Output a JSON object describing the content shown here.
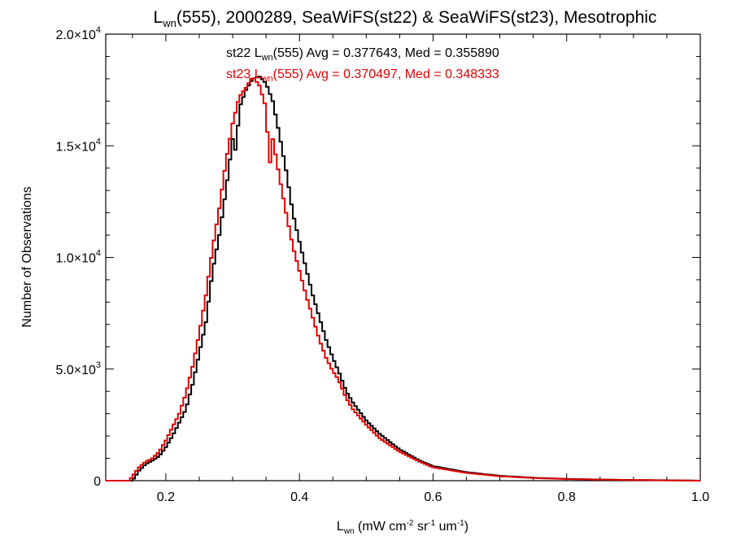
{
  "chart_data": {
    "type": "line",
    "title": {
      "L": "L",
      "sub": "wn",
      "rest": "(555), 2000289, SeaWiFS(st22) & SeaWiFS(st23), Mesotrophic"
    },
    "xlabel": {
      "L": "L",
      "sub": "wn",
      "units_a": " (mW cm",
      "exp1": "-2",
      "units_b": " sr",
      "exp2": "-1",
      "units_c": " um",
      "exp3": "-1",
      "units_d": ")"
    },
    "ylabel": "Number of Observations",
    "xlim": [
      0.11,
      1.0
    ],
    "ylim": [
      0,
      20000
    ],
    "xticks": [
      {
        "value": 0.2,
        "label": "0.2"
      },
      {
        "value": 0.4,
        "label": "0.4"
      },
      {
        "value": 0.6,
        "label": "0.6"
      },
      {
        "value": 0.8,
        "label": "0.8"
      },
      {
        "value": 1.0,
        "label": "1.0"
      }
    ],
    "yticks": [
      {
        "value": 0,
        "mant": "0",
        "exp": ""
      },
      {
        "value": 5000,
        "mant": "5.0×10",
        "exp": "3"
      },
      {
        "value": 10000,
        "mant": "1.0×10",
        "exp": "4"
      },
      {
        "value": 15000,
        "mant": "1.5×10",
        "exp": "4"
      },
      {
        "value": 20000,
        "mant": "2.0×10",
        "exp": "4"
      }
    ],
    "grid": false,
    "annotations": [
      {
        "prefix": "st22 L",
        "sub": "wn",
        "rest": "(555) Avg = 0.377643, Med = 0.355890",
        "color": "#000000"
      },
      {
        "prefix": "st23 L",
        "sub": "wn",
        "rest": "(555) Avg = 0.370497, Med = 0.348333",
        "color": "#e00000"
      }
    ],
    "series": [
      {
        "color": "#000000",
        "x": [
          0.11,
          0.15,
          0.16,
          0.17,
          0.18,
          0.19,
          0.2,
          0.21,
          0.22,
          0.23,
          0.24,
          0.25,
          0.26,
          0.27,
          0.28,
          0.29,
          0.3,
          0.305,
          0.31,
          0.32,
          0.33,
          0.34,
          0.35,
          0.36,
          0.37,
          0.38,
          0.39,
          0.4,
          0.41,
          0.42,
          0.43,
          0.44,
          0.45,
          0.46,
          0.47,
          0.48,
          0.5,
          0.52,
          0.55,
          0.58,
          0.6,
          0.65,
          0.7,
          0.75,
          0.8,
          0.85,
          0.9,
          0.95,
          1.0
        ],
        "y": [
          0,
          0,
          450,
          750,
          900,
          1100,
          1500,
          2000,
          2600,
          3200,
          4300,
          5700,
          7100,
          9400,
          11000,
          13000,
          15300,
          14700,
          16700,
          17500,
          18000,
          18100,
          17800,
          17000,
          15500,
          13900,
          12000,
          10700,
          9500,
          8300,
          7300,
          6300,
          5500,
          4800,
          4000,
          3500,
          2700,
          2100,
          1400,
          900,
          650,
          380,
          220,
          130,
          80,
          50,
          30,
          20,
          0
        ]
      },
      {
        "color": "#e00000",
        "x": [
          0.11,
          0.145,
          0.16,
          0.17,
          0.18,
          0.19,
          0.2,
          0.21,
          0.22,
          0.23,
          0.24,
          0.25,
          0.26,
          0.27,
          0.28,
          0.29,
          0.3,
          0.31,
          0.32,
          0.33,
          0.34,
          0.35,
          0.355,
          0.36,
          0.37,
          0.38,
          0.39,
          0.4,
          0.41,
          0.42,
          0.43,
          0.44,
          0.45,
          0.455,
          0.46,
          0.47,
          0.48,
          0.5,
          0.52,
          0.55,
          0.58,
          0.6,
          0.65,
          0.7,
          0.75,
          0.8,
          0.85,
          0.9,
          0.95,
          1.0
        ],
        "y": [
          0,
          0,
          600,
          850,
          1000,
          1300,
          1800,
          2400,
          3000,
          3900,
          5100,
          6600,
          8300,
          10400,
          12200,
          14300,
          16000,
          17200,
          17600,
          18100,
          17700,
          16700,
          14000,
          15300,
          13600,
          12000,
          10500,
          9400,
          8300,
          7300,
          6300,
          5500,
          4900,
          4700,
          4400,
          3700,
          3200,
          2500,
          1900,
          1300,
          850,
          600,
          350,
          200,
          120,
          75,
          45,
          30,
          15,
          0
        ]
      }
    ]
  }
}
